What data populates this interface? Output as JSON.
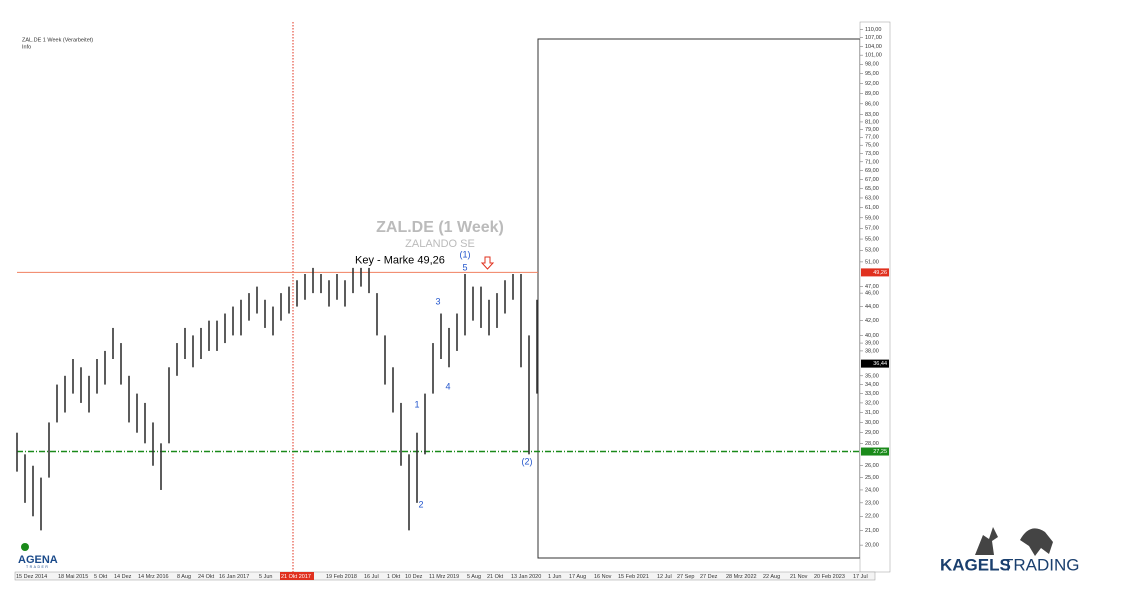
{
  "chart_data": {
    "type": "range-bar",
    "info_lines": [
      "ZAL.DE 1 Week (Verarbeitet)",
      "Info"
    ],
    "title": "ZAL.DE (1 Week)",
    "subtitle": "ZALANDO SE",
    "log_scale": true,
    "color": "#333333",
    "low": [
      25.5,
      23,
      22,
      21,
      25,
      30,
      31,
      33,
      32,
      31,
      33,
      34,
      37,
      34,
      30,
      29,
      28,
      26,
      24,
      28,
      35,
      37,
      36,
      37,
      38,
      38,
      39,
      40,
      40,
      42,
      43,
      41,
      40,
      42,
      43,
      44,
      45,
      46,
      46,
      44,
      45,
      44,
      46,
      47,
      46,
      40,
      34,
      31,
      26,
      21,
      23,
      27,
      33,
      37,
      36,
      38,
      40,
      42,
      41,
      40,
      41,
      43,
      45,
      36,
      27,
      33
    ],
    "high": [
      29,
      27,
      26,
      25,
      30,
      34,
      35,
      37,
      36,
      35,
      37,
      38,
      41,
      39,
      35,
      33,
      32,
      30,
      28,
      36,
      39,
      41,
      40,
      41,
      42,
      42,
      43,
      44,
      45,
      46,
      47,
      45,
      44,
      46,
      47,
      48,
      49,
      50,
      49,
      48,
      49,
      48,
      50,
      50,
      50,
      46,
      40,
      36,
      32,
      27,
      29,
      33,
      39,
      43,
      41,
      43,
      49,
      47,
      47,
      45,
      46,
      48,
      49,
      49,
      40,
      45
    ],
    "ylim": [
      18.3,
      112.7
    ],
    "yticks": [
      {
        "value": 110,
        "label": "110,00"
      },
      {
        "value": 107,
        "label": "107,00"
      },
      {
        "value": 104,
        "label": "104,00"
      },
      {
        "value": 101,
        "label": "101,00"
      },
      {
        "value": 98,
        "label": "98,00"
      },
      {
        "value": 95,
        "label": "95,00"
      },
      {
        "value": 92,
        "label": "92,00"
      },
      {
        "value": 89,
        "label": "89,00"
      },
      {
        "value": 86,
        "label": "86,00"
      },
      {
        "value": 83,
        "label": "83,00"
      },
      {
        "value": 81,
        "label": "81,00"
      },
      {
        "value": 79,
        "label": "79,00"
      },
      {
        "value": 77,
        "label": "77,00"
      },
      {
        "value": 75,
        "label": "75,00"
      },
      {
        "value": 73,
        "label": "73,00"
      },
      {
        "value": 71,
        "label": "71,00"
      },
      {
        "value": 69,
        "label": "69,00"
      },
      {
        "value": 67,
        "label": "67,00"
      },
      {
        "value": 65,
        "label": "65,00"
      },
      {
        "value": 63,
        "label": "63,00"
      },
      {
        "value": 61,
        "label": "61,00"
      },
      {
        "value": 59,
        "label": "59,00"
      },
      {
        "value": 57,
        "label": "57,00"
      },
      {
        "value": 55,
        "label": "55,00"
      },
      {
        "value": 53,
        "label": "53,00"
      },
      {
        "value": 51,
        "label": "51,00"
      },
      {
        "value": 47,
        "label": "47,00"
      },
      {
        "value": 46,
        "label": "46,00"
      },
      {
        "value": 44,
        "label": "44,00"
      },
      {
        "value": 42,
        "label": "42,00"
      },
      {
        "value": 40,
        "label": "40,00"
      },
      {
        "value": 39,
        "label": "39,00"
      },
      {
        "value": 38,
        "label": "38,00"
      },
      {
        "value": 35,
        "label": "35,00"
      },
      {
        "value": 34,
        "label": "34,00"
      },
      {
        "value": 33,
        "label": "33,00"
      },
      {
        "value": 32,
        "label": "32,00"
      },
      {
        "value": 31,
        "label": "31,00"
      },
      {
        "value": 30,
        "label": "30,00"
      },
      {
        "value": 29,
        "label": "29,00"
      },
      {
        "value": 28,
        "label": "28,00"
      },
      {
        "value": 26,
        "label": "26,00"
      },
      {
        "value": 25,
        "label": "25,00"
      },
      {
        "value": 24,
        "label": "24,00"
      },
      {
        "value": 23,
        "label": "23,00"
      },
      {
        "value": 22,
        "label": "22,00"
      },
      {
        "value": 21,
        "label": "21,00"
      },
      {
        "value": 20,
        "label": "20,00"
      }
    ],
    "price_tags": [
      {
        "value": 49.26,
        "label": "49,26",
        "color": "#e0301e"
      },
      {
        "value": 36.44,
        "label": "36,44",
        "color": "#000000"
      },
      {
        "value": 27.25,
        "label": "27,25",
        "color": "#1a8a1a"
      }
    ],
    "key_level": {
      "value": 49.26,
      "label": "Key - Marke 49,26",
      "color": "#f08060"
    },
    "support_level": {
      "value": 27.25,
      "color": "#1a8a1a"
    },
    "wave_labels": [
      "(1)",
      "5",
      "3",
      "4",
      "1",
      "2",
      "(2)"
    ],
    "date_labels": [
      "15 Dez 2014",
      "18 Mai 2015",
      "5 Okt",
      "14 Dez",
      "14 Mrz 2016",
      "8 Aug",
      "24 Okt",
      "16 Jan 2017",
      "5 Jun",
      "21 Okt 2017",
      "19 Feb 2018",
      "16 Jul",
      "1 Okt",
      "10 Dez",
      "11 Mrz 2019",
      "5 Aug",
      "21 Okt",
      "13 Jan 2020",
      "1 Jun",
      "17 Aug",
      "16 Nov",
      "15 Feb 2021",
      "12 Jul",
      "27 Sep",
      "27 Dez",
      "28 Mrz 2022",
      "22 Aug",
      "21 Nov",
      "20 Feb 2023",
      "17 Jul"
    ],
    "highlight_date": 9
  },
  "logos": {
    "agena": "AGENA",
    "agena_sub": "TRADER",
    "kagels_bold": "KAGELS",
    "kagels_light": "TRADING"
  }
}
